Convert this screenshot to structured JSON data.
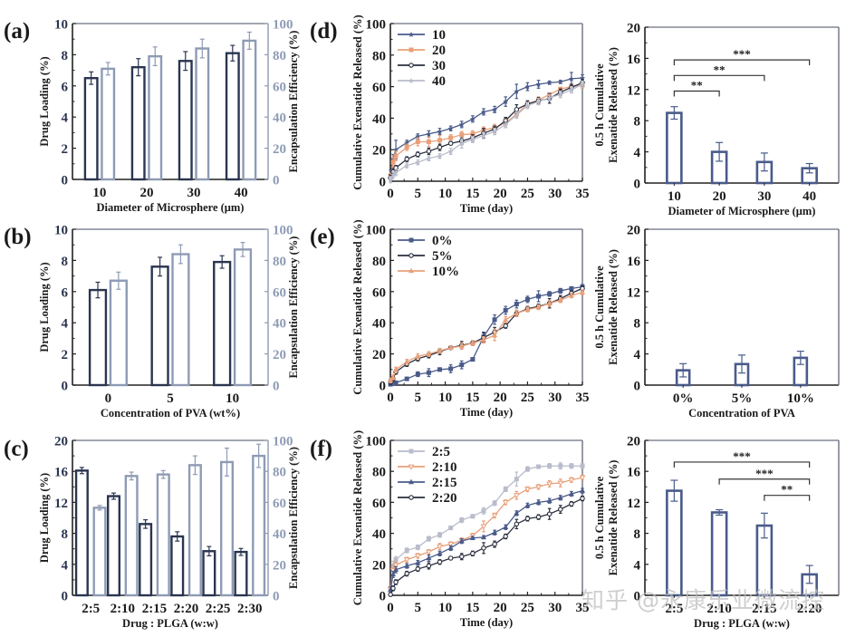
{
  "colors": {
    "dark_navy": "#2a3550",
    "steel_blue": "#4a5b8a",
    "light_steel": "#8e9bb5",
    "orange": "#e8a07a",
    "light_gray": "#b9bccb",
    "axis_gray": "#6b7080"
  },
  "watermark": "知乎 @永康乐业微流控",
  "chart_data": [
    {
      "id": "a",
      "panel_label": "(a)",
      "type": "bar",
      "xlabel": "Diameter of Microsphere (μm)",
      "ylabel": "Drug Loading (%)",
      "y2label": "Encapsulation Efficiency (%)",
      "categories": [
        "10",
        "20",
        "30",
        "40"
      ],
      "ylim": [
        0,
        10
      ],
      "yticks": [
        0,
        2,
        4,
        6,
        8,
        10
      ],
      "y2lim": [
        0,
        100
      ],
      "y2ticks": [
        0,
        20,
        40,
        60,
        80,
        100
      ],
      "series": [
        {
          "name": "Drug Loading",
          "axis": "left",
          "values": [
            6.5,
            7.2,
            7.6,
            8.1
          ],
          "errors": [
            0.4,
            0.55,
            0.6,
            0.5
          ]
        },
        {
          "name": "Encapsulation Efficiency",
          "axis": "right",
          "values": [
            71,
            79,
            84,
            89
          ],
          "errors": [
            4,
            6,
            6,
            5.5
          ]
        }
      ]
    },
    {
      "id": "b",
      "panel_label": "(b)",
      "type": "bar",
      "xlabel": "Concentration of PVA (wt%)",
      "ylabel": "Drug Loading (%)",
      "y2label": "Encapsulation Efficiency (%)",
      "categories": [
        "0",
        "5",
        "10"
      ],
      "ylim": [
        0,
        10
      ],
      "yticks": [
        0,
        2,
        4,
        6,
        8,
        10
      ],
      "y2lim": [
        0,
        100
      ],
      "y2ticks": [
        0,
        20,
        40,
        60,
        80,
        100
      ],
      "series": [
        {
          "name": "Drug Loading",
          "axis": "left",
          "values": [
            6.1,
            7.6,
            7.9
          ],
          "errors": [
            0.5,
            0.6,
            0.4
          ]
        },
        {
          "name": "Encapsulation Efficiency",
          "axis": "right",
          "values": [
            67,
            84,
            87
          ],
          "errors": [
            5.5,
            6,
            4.5
          ]
        }
      ]
    },
    {
      "id": "c",
      "panel_label": "(c)",
      "type": "bar",
      "xlabel": "Drug : PLGA (w:w)",
      "ylabel": "Drug Loading (%)",
      "y2label": "Encapsulation Efficiency (%)",
      "categories": [
        "2:5",
        "2:10",
        "2:15",
        "2:20",
        "2:25",
        "2:30"
      ],
      "ylim": [
        0,
        20
      ],
      "yticks": [
        0,
        4,
        8,
        12,
        16,
        20
      ],
      "y2lim": [
        0,
        100
      ],
      "y2ticks": [
        0,
        20,
        40,
        60,
        80,
        100
      ],
      "series": [
        {
          "name": "Drug Loading",
          "axis": "left",
          "values": [
            16.1,
            12.8,
            9.2,
            7.6,
            5.7,
            5.6
          ],
          "errors": [
            0.4,
            0.4,
            0.55,
            0.6,
            0.6,
            0.45
          ]
        },
        {
          "name": "Encapsulation Efficiency",
          "axis": "right",
          "values": [
            56.5,
            77,
            78,
            84,
            86,
            90
          ],
          "errors": [
            1.5,
            2.5,
            2.5,
            6,
            9,
            7.5
          ]
        }
      ]
    },
    {
      "id": "d",
      "panel_label": "(d)",
      "type": "line",
      "xlabel": "Time (day)",
      "ylabel": "Cumulative Exenatide Released (%)",
      "xlim": [
        0,
        35
      ],
      "xticks": [
        0,
        5,
        10,
        15,
        20,
        25,
        30,
        35
      ],
      "ylim": [
        0,
        100
      ],
      "yticks": [
        0,
        20,
        40,
        60,
        80,
        100
      ],
      "legend_position": "top-left",
      "x": [
        0.02,
        0.5,
        1,
        3,
        5,
        7,
        9,
        11,
        13,
        15,
        17,
        19,
        21,
        23,
        25,
        27,
        29,
        31,
        33,
        35
      ],
      "series": [
        {
          "name": "10",
          "color": "#4a5b8a",
          "marker": "star",
          "values": [
            4,
            14,
            20,
            24.5,
            28.5,
            30,
            31.5,
            33.5,
            36,
            39.5,
            44,
            45.5,
            50.5,
            57,
            60,
            61.5,
            62.5,
            63,
            65,
            65.5
          ],
          "errors": [
            3,
            3,
            6,
            1.5,
            1.5,
            2,
            2,
            1.5,
            2,
            2,
            2,
            2,
            3,
            4.5,
            2.5,
            2.5,
            1,
            1,
            4,
            2
          ]
        },
        {
          "name": "20",
          "color": "#e8a07a",
          "marker": "square",
          "values": [
            3,
            12,
            16,
            21.5,
            25,
            25,
            26,
            27.5,
            29.5,
            30,
            32.5,
            34,
            37,
            42.5,
            49,
            51.5,
            55,
            58.5,
            60,
            61
          ],
          "errors": [
            2,
            3,
            3,
            2,
            2.5,
            3,
            3,
            2,
            2,
            2,
            2,
            2,
            3,
            2,
            2,
            2,
            1,
            1,
            1,
            2
          ]
        },
        {
          "name": "30",
          "color": "#2a2f3e",
          "marker": "circle",
          "values": [
            2,
            6,
            8.5,
            14,
            17,
            19,
            21.5,
            24,
            25.5,
            27.5,
            30.5,
            33,
            38.5,
            45.5,
            49,
            51,
            52.5,
            56.5,
            59.5,
            62.5
          ],
          "errors": [
            2,
            2,
            1.5,
            1.5,
            1.5,
            2,
            2,
            1,
            2,
            2,
            3,
            2,
            2,
            3,
            2,
            2,
            3,
            2,
            2,
            2
          ]
        },
        {
          "name": "40",
          "color": "#b9bccb",
          "marker": "star",
          "values": [
            1,
            4,
            5.5,
            10,
            12,
            14.5,
            16,
            19,
            24,
            26.5,
            29,
            31.5,
            36,
            42,
            48,
            50.5,
            53,
            55,
            58,
            61.5
          ],
          "errors": [
            2,
            2,
            2,
            1.5,
            1.5,
            1.5,
            1.5,
            2,
            3,
            2,
            2,
            2,
            2,
            2,
            2,
            2,
            2,
            2,
            2,
            2
          ]
        }
      ]
    },
    {
      "id": "e",
      "panel_label": "(e)",
      "type": "line",
      "xlabel": "Time (day)",
      "ylabel": "Cumulative Exenatide Released (%)",
      "xlim": [
        0,
        35
      ],
      "xticks": [
        0,
        5,
        10,
        15,
        20,
        25,
        30,
        35
      ],
      "ylim": [
        0,
        100
      ],
      "yticks": [
        0,
        20,
        40,
        60,
        80,
        100
      ],
      "legend_position": "top-left",
      "x": [
        0.02,
        0.5,
        1,
        3,
        5,
        7,
        9,
        11,
        13,
        15,
        17,
        19,
        21,
        23,
        25,
        27,
        29,
        31,
        33,
        35
      ],
      "series": [
        {
          "name": "0%",
          "color": "#4a5b8a",
          "marker": "square",
          "values": [
            0.5,
            1,
            1.5,
            4,
            7,
            8,
            10,
            10.5,
            13,
            16.5,
            31,
            42,
            48,
            52,
            55,
            57,
            58.5,
            60.5,
            62,
            63
          ],
          "errors": [
            0.5,
            0.5,
            0.5,
            1,
            1.5,
            2.5,
            1,
            2.5,
            2.5,
            1,
            3,
            3,
            2.5,
            2.5,
            2,
            3.5,
            1.5,
            1.5,
            1,
            1.5
          ]
        },
        {
          "name": "5%",
          "color": "#2a2f3e",
          "marker": "circle",
          "values": [
            2,
            4,
            8.5,
            13.5,
            17,
            19,
            21.5,
            24,
            25.5,
            27,
            30.5,
            34,
            38,
            46,
            49,
            50.5,
            52.5,
            55.5,
            59,
            62
          ],
          "errors": [
            1.5,
            1.5,
            1.5,
            1.5,
            1.5,
            1.5,
            2,
            1,
            2.5,
            1.5,
            3,
            3,
            1.5,
            2,
            1.5,
            1.5,
            3,
            2,
            1.5,
            1.5
          ]
        },
        {
          "name": "10%",
          "color": "#e8a07a",
          "marker": "triangle",
          "values": [
            3,
            5,
            10,
            15,
            18.5,
            20,
            22,
            24,
            25,
            27,
            29,
            32,
            42,
            46,
            48.5,
            50,
            52.5,
            54.5,
            57.5,
            59.5
          ],
          "errors": [
            1.5,
            1.5,
            1.5,
            1.5,
            1.5,
            1.5,
            1.5,
            1,
            2,
            1.5,
            2,
            3.5,
            2,
            2,
            1.5,
            1.5,
            2,
            1.5,
            1.5,
            1.5
          ]
        }
      ]
    },
    {
      "id": "f",
      "panel_label": "(f)",
      "type": "line",
      "xlabel": "Time (day)",
      "ylabel": "Cumulative Exenatide Released (%)",
      "xlim": [
        0,
        35
      ],
      "xticks": [
        0,
        5,
        10,
        15,
        20,
        25,
        30,
        35
      ],
      "ylim": [
        0,
        100
      ],
      "yticks": [
        0,
        20,
        40,
        60,
        80,
        100
      ],
      "legend_position": "top-left",
      "x": [
        0.02,
        0.5,
        1,
        3,
        5,
        7,
        9,
        11,
        13,
        15,
        17,
        19,
        21,
        23,
        25,
        27,
        29,
        31,
        33,
        35
      ],
      "series": [
        {
          "name": "2:5",
          "color": "#b9bccb",
          "marker": "square",
          "values": [
            4,
            19,
            23,
            29,
            31,
            36.5,
            39,
            43.5,
            48.5,
            51,
            54.5,
            59.5,
            68.5,
            75,
            81.5,
            83,
            83.5,
            83.5,
            83.5,
            83.5
          ],
          "errors": [
            2,
            3,
            2,
            1.5,
            1.5,
            1.5,
            1.5,
            1,
            1.5,
            1,
            2,
            1.5,
            1.5,
            4.5,
            1.5,
            1,
            1.5,
            2,
            1.5,
            1.5
          ]
        },
        {
          "name": "2:10",
          "color": "#e8a07a",
          "marker": "triangle-down",
          "values": [
            4,
            16,
            19.5,
            23,
            25.5,
            28,
            31.5,
            33,
            35.5,
            38.5,
            44.5,
            51.5,
            60,
            64.5,
            68.5,
            70,
            72,
            72.5,
            74.5,
            76
          ],
          "errors": [
            2,
            3,
            2,
            1.5,
            1.5,
            1.5,
            2,
            1.5,
            1.5,
            1.5,
            3.5,
            1.5,
            1.5,
            2.5,
            1.5,
            1.5,
            2,
            2.5,
            1.5,
            1.5
          ]
        },
        {
          "name": "2:15",
          "color": "#4a5b8a",
          "marker": "triangle",
          "values": [
            3.5,
            13.5,
            16.5,
            19,
            21,
            24,
            27,
            30.5,
            35,
            37,
            37.5,
            40.5,
            44,
            53,
            58,
            60,
            61,
            63,
            65.5,
            67.5
          ],
          "errors": [
            2,
            2,
            2,
            1.5,
            1.5,
            2,
            1.5,
            1.5,
            1.5,
            1,
            1,
            1.5,
            1.5,
            1.5,
            1.5,
            1.5,
            1.5,
            1.5,
            1.5,
            1.5
          ]
        },
        {
          "name": "2:20",
          "color": "#2a2f3e",
          "marker": "circle",
          "values": [
            0.5,
            4.5,
            8.5,
            14,
            17,
            19,
            21.5,
            24,
            25,
            27,
            30.5,
            33,
            38,
            46,
            49.5,
            50.5,
            52.5,
            55.5,
            59,
            62.5
          ],
          "errors": [
            0.5,
            1.5,
            1.5,
            1.5,
            1.5,
            2,
            1.5,
            1,
            2,
            1.5,
            3.5,
            2,
            1.5,
            3,
            1.5,
            1.5,
            3.5,
            2.5,
            1.5,
            1.5
          ]
        }
      ]
    },
    {
      "id": "d-right",
      "panel_label": "",
      "type": "bar",
      "xlabel": "Diameter of Microsphere (μm)",
      "ylabel": [
        "0.5 h Cumulative",
        "Exenatide Released (%)"
      ],
      "categories": [
        "10",
        "20",
        "30",
        "40"
      ],
      "ylim": [
        0,
        20
      ],
      "yticks": [
        0,
        4,
        8,
        12,
        16,
        20
      ],
      "values": [
        9.0,
        4.0,
        2.7,
        1.9
      ],
      "errors": [
        0.8,
        1.2,
        1.15,
        0.6
      ],
      "significance": [
        {
          "from": "10",
          "to": "20",
          "label": "**",
          "y": 11.8
        },
        {
          "from": "10",
          "to": "30",
          "label": "**",
          "y": 13.8
        },
        {
          "from": "10",
          "to": "40",
          "label": "***",
          "y": 15.8
        }
      ]
    },
    {
      "id": "e-right",
      "panel_label": "",
      "type": "bar",
      "xlabel": "Concentration of PVA",
      "ylabel": [
        "0.5 h Cumulative",
        "Exenatide Released (%)"
      ],
      "categories": [
        "0%",
        "5%",
        "10%"
      ],
      "ylim": [
        0,
        20
      ],
      "yticks": [
        0,
        4,
        8,
        12,
        16,
        20
      ],
      "values": [
        1.9,
        2.7,
        3.5
      ],
      "errors": [
        0.85,
        1.15,
        0.85
      ],
      "significance": []
    },
    {
      "id": "f-right",
      "panel_label": "",
      "type": "bar",
      "xlabel": "Drug : PLGA (w:w)",
      "ylabel": [
        "0.5 h Cumulative",
        "Exenatide Released (%)"
      ],
      "categories": [
        "2:5",
        "2:10",
        "2:15",
        "2:20"
      ],
      "ylim": [
        0,
        20
      ],
      "yticks": [
        0,
        4,
        8,
        12,
        16,
        20
      ],
      "values": [
        13.5,
        10.7,
        9.0,
        2.7
      ],
      "errors": [
        1.35,
        0.35,
        1.6,
        1.15
      ],
      "significance": [
        {
          "from": "2:5",
          "to": "2:20",
          "label": "***",
          "y": 17.2
        },
        {
          "from": "2:10",
          "to": "2:20",
          "label": "***",
          "y": 15.0
        },
        {
          "from": "2:15",
          "to": "2:20",
          "label": "**",
          "y": 12.9
        }
      ]
    }
  ]
}
